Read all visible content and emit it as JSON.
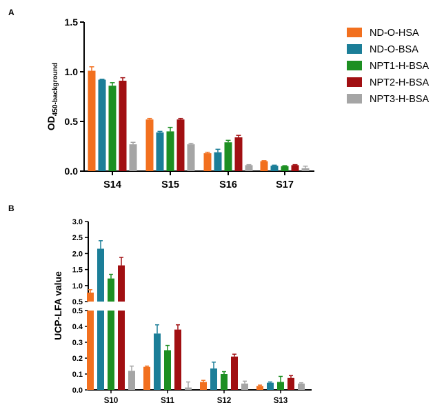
{
  "colors": {
    "ND-O-HSA": "#f2701f",
    "ND-O-BSA": "#1b7e98",
    "NPT1-H-BSA": "#1d8f22",
    "NPT2-H-BSA": "#a10f12",
    "NPT3-H-BSA": "#a5a5a5"
  },
  "legend": [
    "ND-O-HSA",
    "ND-O-BSA",
    "NPT1-H-BSA",
    "NPT2-H-BSA",
    "NPT3-H-BSA"
  ],
  "chart_data": [
    {
      "panel": "A",
      "type": "bar",
      "ylabel_main": "OD",
      "ylabel_sub": "450-background",
      "categories": [
        "S14",
        "S15",
        "S16",
        "S17"
      ],
      "ylim": [
        0,
        1.5
      ],
      "yticks": [
        "0.0",
        "0.5",
        "1.0",
        "1.5"
      ],
      "series": [
        {
          "name": "ND-O-HSA",
          "values": [
            1.01,
            0.52,
            0.18,
            0.1
          ],
          "errors": [
            0.04,
            0.01,
            0.01,
            0.005
          ]
        },
        {
          "name": "ND-O-BSA",
          "values": [
            0.92,
            0.39,
            0.19,
            0.055
          ],
          "errors": [
            0.005,
            0.01,
            0.03,
            0.005
          ]
        },
        {
          "name": "NPT1-H-BSA",
          "values": [
            0.86,
            0.4,
            0.29,
            0.05
          ],
          "errors": [
            0.03,
            0.04,
            0.02,
            0.005
          ]
        },
        {
          "name": "NPT2-H-BSA",
          "values": [
            0.91,
            0.52,
            0.34,
            0.06
          ],
          "errors": [
            0.03,
            0.01,
            0.02,
            0.005
          ]
        },
        {
          "name": "NPT3-H-BSA",
          "values": [
            0.27,
            0.27,
            0.06,
            0.03
          ],
          "errors": [
            0.02,
            0.01,
            0.005,
            0.02
          ]
        }
      ]
    },
    {
      "panel": "B",
      "type": "bar",
      "ylabel": "UCP-LFA value",
      "categories": [
        "S10",
        "S11",
        "S12",
        "S13"
      ],
      "ylim": [
        0,
        3.0
      ],
      "axis_break": [
        0.5,
        0.5
      ],
      "yticks_lower": [
        "0.0",
        "0.1",
        "0.2",
        "0.3",
        "0.4",
        "0.5"
      ],
      "yticks_upper": [
        "0.5",
        "1.0",
        "1.5",
        "2.0",
        "2.5",
        "3.0"
      ],
      "series": [
        {
          "name": "ND-O-HSA",
          "values": [
            0.78,
            0.145,
            0.05,
            0.025
          ],
          "errors": [
            0.09,
            0.005,
            0.01,
            0.005
          ]
        },
        {
          "name": "ND-O-BSA",
          "values": [
            2.15,
            0.355,
            0.135,
            0.045
          ],
          "errors": [
            0.25,
            0.055,
            0.04,
            0.005
          ]
        },
        {
          "name": "NPT1-H-BSA",
          "values": [
            1.22,
            0.25,
            0.1,
            0.05
          ],
          "errors": [
            0.13,
            0.03,
            0.015,
            0.035
          ]
        },
        {
          "name": "NPT2-H-BSA",
          "values": [
            1.63,
            0.38,
            0.21,
            0.075
          ],
          "errors": [
            0.25,
            0.03,
            0.015,
            0.015
          ]
        },
        {
          "name": "NPT3-H-BSA",
          "values": [
            0.12,
            0.015,
            0.04,
            0.04
          ],
          "errors": [
            0.03,
            0.035,
            0.015,
            0.005
          ]
        }
      ]
    }
  ]
}
